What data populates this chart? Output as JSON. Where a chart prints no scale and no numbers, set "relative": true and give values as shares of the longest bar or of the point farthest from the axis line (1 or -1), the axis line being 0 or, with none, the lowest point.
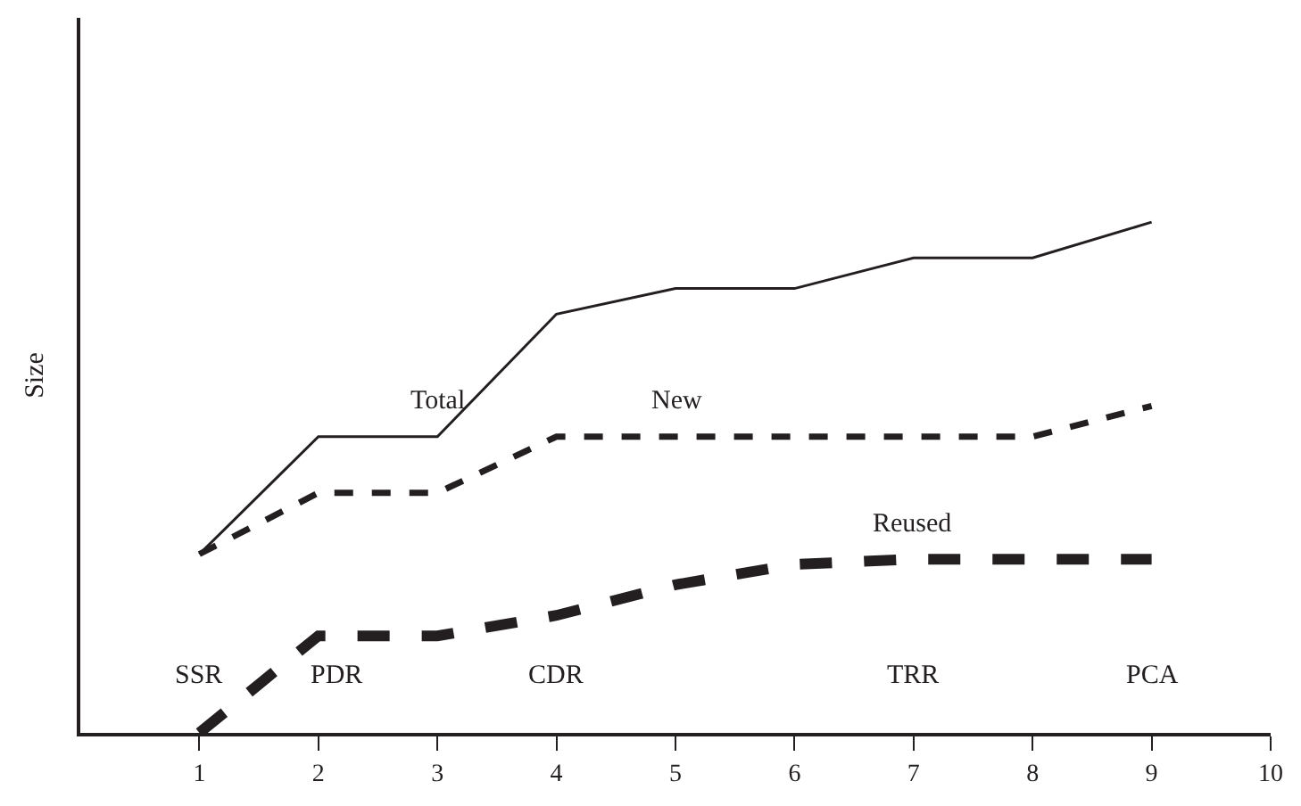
{
  "chart_data": {
    "type": "line",
    "relative": true,
    "ylabel": "Size",
    "x": [
      1,
      2,
      3,
      4,
      5,
      6,
      7,
      8,
      9
    ],
    "xlim": [
      0,
      10
    ],
    "xticks": [
      1,
      2,
      3,
      4,
      5,
      6,
      7,
      8,
      9,
      10
    ],
    "series": [
      {
        "name": "Total",
        "color": "#231f20",
        "line_style": "solid",
        "values": [
          0.35,
          0.58,
          0.58,
          0.82,
          0.87,
          0.87,
          0.93,
          0.93,
          1
        ]
      },
      {
        "name": "New",
        "color": "#231f20",
        "line_style": "dashed",
        "values": [
          0.35,
          0.47,
          0.47,
          0.58,
          0.58,
          0.58,
          0.58,
          0.58,
          0.64
        ]
      },
      {
        "name": "Reused",
        "color": "#231f20",
        "line_style": "dashed",
        "values": [
          0,
          0.19,
          0.19,
          0.23,
          0.29,
          0.33,
          0.34,
          0.34,
          0.34
        ]
      }
    ],
    "annotations": [
      "SSR",
      "PDR",
      "CDR",
      "TRR",
      "PCA"
    ],
    "legend": false,
    "marker": "none"
  }
}
